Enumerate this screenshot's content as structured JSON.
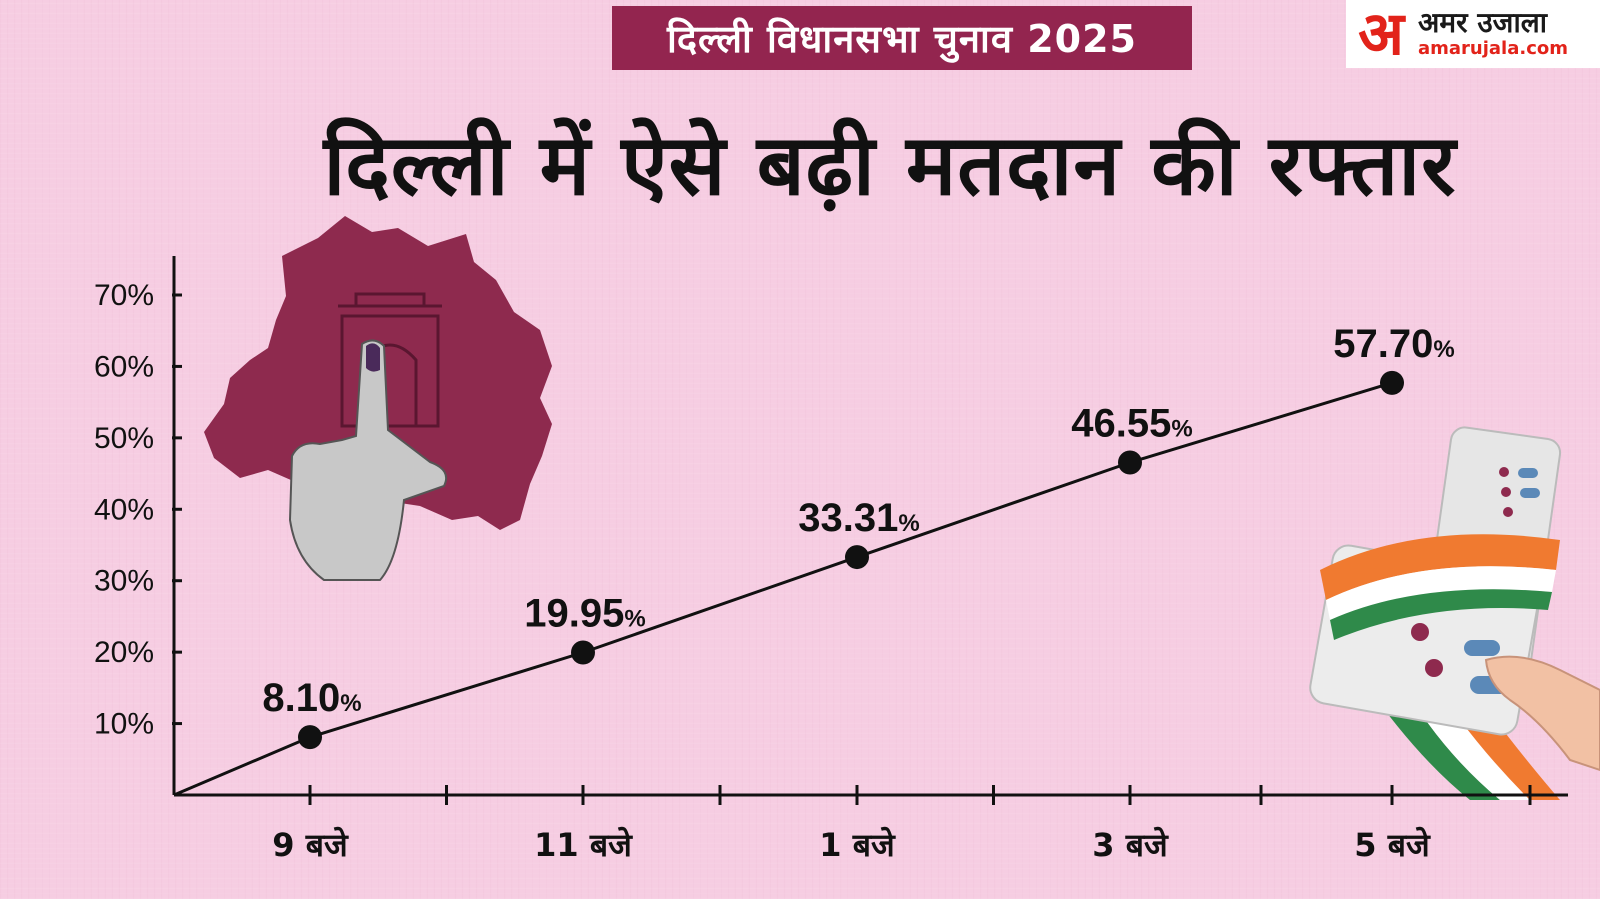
{
  "banner": {
    "title": "दिल्ली विधानसभा चुनाव 2025"
  },
  "logo": {
    "mark": "अ",
    "name": "अमर उजाला",
    "url": "amarujala.com"
  },
  "headline": "दिल्ली में  ऐसे बढ़ी मतदान की रफ्तार",
  "colors": {
    "background": "#f6cde2",
    "banner": "#93254f",
    "line": "#111111",
    "logo_red": "#e2231a",
    "map": "#8e2a4e"
  },
  "chart_data": {
    "type": "line",
    "categories": [
      "9 बजे",
      "11 बजे",
      "1 बजे",
      "3 बजे",
      "5 बजे"
    ],
    "values": [
      8.1,
      19.95,
      33.31,
      46.55,
      57.7
    ],
    "data_labels": [
      "8.10",
      "19.95",
      "33.31",
      "46.55",
      "57.70"
    ],
    "data_label_unit": "%",
    "yticks": [
      "10%",
      "20%",
      "30%",
      "40%",
      "50%",
      "60%",
      "70%"
    ],
    "ylim": [
      0,
      70
    ],
    "grid": false,
    "legend": "none",
    "title": "",
    "xlabel": "",
    "ylabel": ""
  },
  "decorations": {
    "left": "delhi-map-with-india-gate-and-inked-finger",
    "right": "evm-machine-with-tricolor-ribbon-and-hand"
  }
}
